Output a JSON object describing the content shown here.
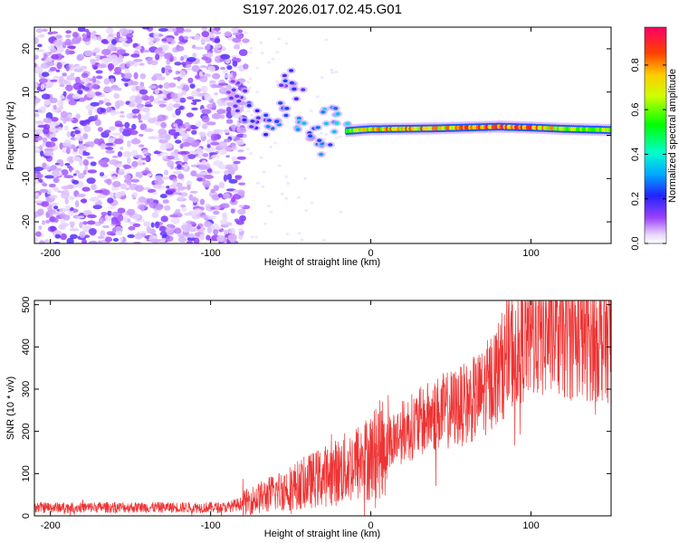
{
  "title": "S197.2026.017.02.45.G01",
  "chart_data": [
    {
      "type": "heatmap",
      "xlabel": "Height of straight line (km)",
      "ylabel": "Frequency (Hz)",
      "xlim": [
        -210,
        150
      ],
      "ylim": [
        -25,
        25
      ],
      "x_ticks": [
        -200,
        -100,
        0,
        100
      ],
      "y_ticks": [
        -20,
        -10,
        0,
        10,
        20
      ],
      "colorbar": {
        "label": "Normalized spectral amplitude",
        "range": [
          0.0,
          0.97
        ],
        "ticks": [
          0.0,
          0.2,
          0.4,
          0.6,
          0.8
        ]
      },
      "noise_region_x": [
        -210,
        -78
      ],
      "scattered_track": [
        {
          "x": -88,
          "y": 11,
          "value": 0.15
        },
        {
          "x": -80,
          "y": 8,
          "value": 0.18
        },
        {
          "x": -75,
          "y": 5,
          "value": 0.2
        },
        {
          "x": -70,
          "y": 3,
          "value": 0.22
        },
        {
          "x": -62,
          "y": 1,
          "value": 0.25
        },
        {
          "x": -55,
          "y": 5,
          "value": 0.3
        },
        {
          "x": -52,
          "y": 13,
          "value": 0.2
        },
        {
          "x": -46,
          "y": 10,
          "value": 0.2
        },
        {
          "x": -42,
          "y": 2,
          "value": 0.3
        },
        {
          "x": -36,
          "y": 0,
          "value": 0.32
        },
        {
          "x": -30,
          "y": -2,
          "value": 0.3
        },
        {
          "x": -25,
          "y": 5,
          "value": 0.3
        },
        {
          "x": -18,
          "y": 3,
          "value": 0.35
        }
      ],
      "stable_line": [
        {
          "x": -15,
          "y": 1.0,
          "value": 0.6
        },
        {
          "x": 0,
          "y": 1.4,
          "value": 0.75
        },
        {
          "x": 20,
          "y": 1.5,
          "value": 0.8
        },
        {
          "x": 40,
          "y": 1.6,
          "value": 0.8
        },
        {
          "x": 60,
          "y": 1.8,
          "value": 0.85
        },
        {
          "x": 80,
          "y": 2.0,
          "value": 0.9
        },
        {
          "x": 100,
          "y": 1.8,
          "value": 0.85
        },
        {
          "x": 120,
          "y": 1.5,
          "value": 0.7
        },
        {
          "x": 150,
          "y": 1.2,
          "value": 0.6
        }
      ]
    },
    {
      "type": "line",
      "xlabel": "Height of straight line (km)",
      "ylabel": "SNR (10 * v/v)",
      "xlim": [
        -210,
        150
      ],
      "ylim": [
        0,
        510
      ],
      "x_ticks": [
        -200,
        -100,
        0,
        100
      ],
      "y_ticks": [
        0,
        100,
        200,
        300,
        400,
        500
      ],
      "color": "#ee3333",
      "trend": [
        {
          "x": -210,
          "y": 20
        },
        {
          "x": -90,
          "y": 20
        },
        {
          "x": -80,
          "y": 30
        },
        {
          "x": -60,
          "y": 55
        },
        {
          "x": -40,
          "y": 80
        },
        {
          "x": -20,
          "y": 105
        },
        {
          "x": 0,
          "y": 140
        },
        {
          "x": 10,
          "y": 170
        },
        {
          "x": 20,
          "y": 200
        },
        {
          "x": 40,
          "y": 240
        },
        {
          "x": 60,
          "y": 265
        },
        {
          "x": 70,
          "y": 290
        },
        {
          "x": 80,
          "y": 345
        },
        {
          "x": 90,
          "y": 400
        },
        {
          "x": 100,
          "y": 430
        },
        {
          "x": 110,
          "y": 435
        },
        {
          "x": 130,
          "y": 425
        },
        {
          "x": 150,
          "y": 420
        }
      ]
    }
  ]
}
